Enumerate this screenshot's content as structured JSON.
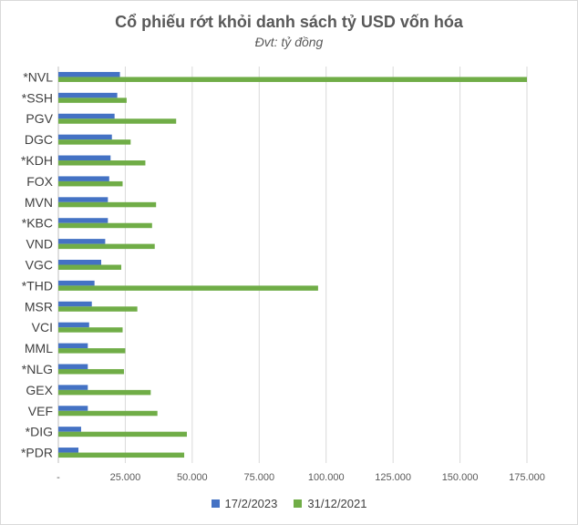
{
  "chart_data": {
    "type": "bar",
    "orientation": "horizontal",
    "title": "Cổ phiếu rớt khỏi danh sách tỷ USD vốn hóa",
    "subtitle": "Đvt: tỷ đồng",
    "categories": [
      "*NVL",
      "*SSH",
      "PGV",
      "DGC",
      "*KDH",
      "FOX",
      "MVN",
      "*KBC",
      "VND",
      "VGC",
      "*THD",
      "MSR",
      "VCI",
      "MML",
      "*NLG",
      "GEX",
      "VEF",
      "*DIG",
      "*PDR"
    ],
    "series": [
      {
        "name": "17/2/2023",
        "color": "#4472c4",
        "values": [
          23000,
          22000,
          21000,
          20000,
          19500,
          19000,
          18500,
          18500,
          17500,
          16000,
          13500,
          12500,
          11500,
          11000,
          11000,
          11000,
          11000,
          8500,
          7500
        ]
      },
      {
        "name": "31/12/2021",
        "color": "#70ad47",
        "values": [
          175000,
          25500,
          44000,
          27000,
          32500,
          24000,
          36500,
          35000,
          36000,
          23500,
          97000,
          29500,
          24000,
          25000,
          24500,
          34500,
          37000,
          48000,
          47000
        ]
      }
    ],
    "x_ticks": [
      "-",
      "25.000",
      "50.000",
      "75.000",
      "100.000",
      "125.000",
      "150.000",
      "175.000"
    ],
    "x_tick_values": [
      0,
      25000,
      50000,
      75000,
      100000,
      125000,
      150000,
      175000
    ],
    "xlim": [
      0,
      175000
    ],
    "grid": "vertical",
    "legend_position": "bottom"
  }
}
